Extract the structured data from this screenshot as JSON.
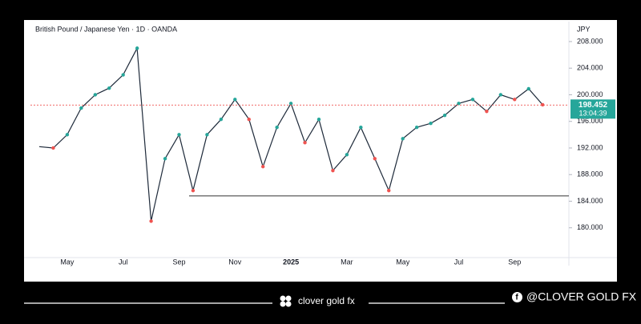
{
  "chart_data": {
    "type": "line",
    "title": "British Pound / Japanese Yen · 1D · OANDA",
    "currency": "JPY",
    "categories": [
      null,
      null,
      "May",
      null,
      null,
      null,
      "Jul",
      null,
      null,
      null,
      "Sep",
      null,
      null,
      null,
      "Nov",
      null,
      null,
      null,
      "2025",
      null,
      null,
      null,
      "Mar",
      null,
      null,
      null,
      "May",
      null,
      null,
      null,
      "Jul",
      null,
      null,
      null,
      "Sep",
      null,
      null
    ],
    "series": [
      {
        "name": "GBPJPY",
        "color": "#1e2a3a",
        "values": [
          192.2,
          192,
          194,
          198,
          200,
          201,
          203,
          207,
          181,
          190.4,
          194,
          185.6,
          194,
          196.3,
          199.3,
          196.3,
          189.2,
          195.1,
          198.7,
          192.8,
          196.3,
          188.6,
          191,
          195.1,
          190.4,
          185.6,
          193.4,
          195.1,
          195.7,
          196.9,
          198.7,
          199.3,
          197.5,
          200,
          199.3,
          200.9,
          198.5
        ]
      }
    ],
    "ylim": [
      176,
      211
    ],
    "yticks": [
      {
        "value": 180,
        "label": "180.000"
      },
      {
        "value": 184,
        "label": "184.000"
      },
      {
        "value": 188,
        "label": "188.000"
      },
      {
        "value": 192,
        "label": "192.000"
      },
      {
        "value": 196,
        "label": "196.000"
      },
      {
        "value": 200,
        "label": "200.000"
      },
      {
        "value": 204,
        "label": "204.000"
      },
      {
        "value": 208,
        "label": "208.000"
      }
    ],
    "support_level": 184.8,
    "last_price": 198.452,
    "countdown": "13:04:39",
    "up_color": "#26a69a",
    "down_color": "#ef5350",
    "grid": false
  },
  "footer": {
    "brand": "clover gold fx",
    "handle": "@CLOVER GOLD FX"
  }
}
